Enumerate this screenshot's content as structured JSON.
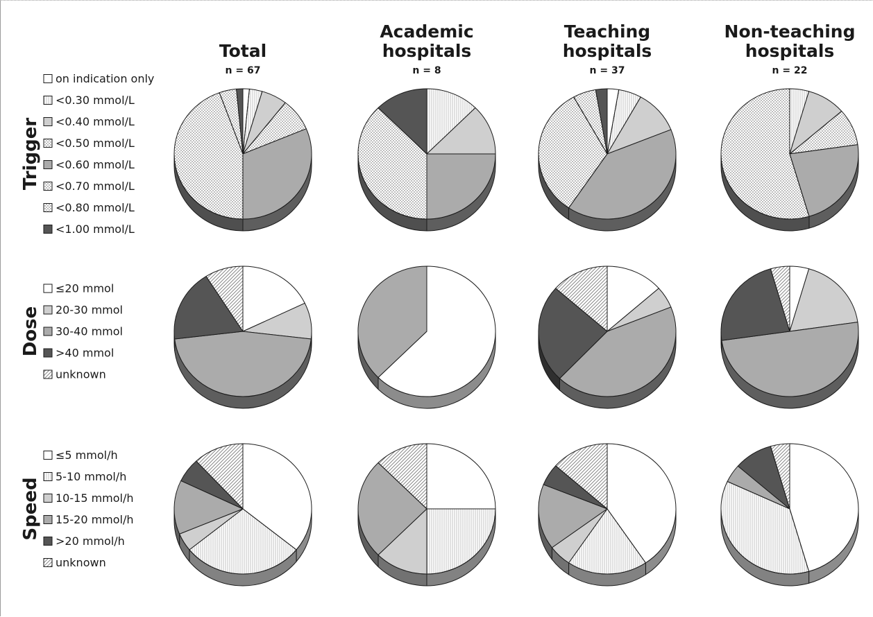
{
  "chart_data": {
    "type": "pie",
    "columns": [
      {
        "title": [
          "Total"
        ],
        "n_label": "n = 67"
      },
      {
        "title": [
          "Academic",
          "hospitals"
        ],
        "n_label": "n = 8"
      },
      {
        "title": [
          "Teaching",
          "hospitals"
        ],
        "n_label": "n = 37"
      },
      {
        "title": [
          "Non-teaching",
          "hospitals"
        ],
        "n_label": "n = 22"
      }
    ],
    "rows": [
      {
        "label": "Trigger",
        "categories": [
          {
            "label": "on indication only",
            "fill": "#ffffff",
            "pattern": "none"
          },
          {
            "label": "<0.30 mmol/L",
            "fill": "#ededed",
            "pattern": "vlines"
          },
          {
            "label": "<0.40 mmol/L",
            "fill": "#cfcfcf",
            "pattern": "none"
          },
          {
            "label": "<0.50 mmol/L",
            "fill": "#c4c4c4",
            "pattern": "dots"
          },
          {
            "label": "<0.60 mmol/L",
            "fill": "#ababab",
            "pattern": "none"
          },
          {
            "label": "<0.70 mmol/L",
            "fill": "#8f8f8f",
            "pattern": "dots"
          },
          {
            "label": "<0.80 mmol/L",
            "fill": "#4a4a4a",
            "pattern": "dots"
          },
          {
            "label": "<1.00 mmol/L",
            "fill": "#555555",
            "pattern": "none"
          }
        ],
        "values": [
          [
            1.5,
            3,
            6,
            8,
            31,
            44,
            4,
            1.5
          ],
          [
            0,
            12.5,
            12.5,
            0,
            25,
            37.5,
            0,
            12.5
          ],
          [
            2.7,
            5.4,
            10.8,
            0,
            40.5,
            32.4,
            5.4,
            2.7
          ],
          [
            0,
            4.5,
            9.1,
            9.1,
            22.7,
            54.5,
            0,
            0
          ]
        ]
      },
      {
        "label": "Dose",
        "categories": [
          {
            "label": "≤20 mmol",
            "fill": "#ffffff",
            "pattern": "none"
          },
          {
            "label": "20-30 mmol",
            "fill": "#cfcfcf",
            "pattern": "none"
          },
          {
            "label": "30-40 mmol",
            "fill": "#ababab",
            "pattern": "none"
          },
          {
            "label": ">40 mmol",
            "fill": "#555555",
            "pattern": "none"
          },
          {
            "label": "unknown",
            "fill": "#e9e9e9",
            "pattern": "diag"
          }
        ],
        "values": [
          [
            17.9,
            9,
            46.3,
            17.9,
            9
          ],
          [
            62.5,
            0,
            37.5,
            0,
            0
          ],
          [
            13.5,
            5.4,
            43.2,
            24.3,
            13.5
          ],
          [
            4.5,
            18.2,
            50,
            22.7,
            4.5
          ]
        ]
      },
      {
        "label": "Speed",
        "categories": [
          {
            "label": "≤5 mmol/h",
            "fill": "#ffffff",
            "pattern": "none"
          },
          {
            "label": "5-10 mmol/h",
            "fill": "#ededed",
            "pattern": "vlines"
          },
          {
            "label": "10-15 mmol/h",
            "fill": "#cfcfcf",
            "pattern": "none"
          },
          {
            "label": "15-20 mmol/h",
            "fill": "#ababab",
            "pattern": "none"
          },
          {
            "label": ">20 mmol/h",
            "fill": "#555555",
            "pattern": "none"
          },
          {
            "label": "unknown",
            "fill": "#e9e9e9",
            "pattern": "diag"
          }
        ],
        "values": [
          [
            35.8,
            28.4,
            4.5,
            13.4,
            6,
            11.9
          ],
          [
            25,
            25,
            12.5,
            25,
            0,
            12.5
          ],
          [
            40.5,
            18.9,
            5.4,
            16.2,
            5.4,
            13.5
          ],
          [
            45.5,
            36.4,
            0,
            4.5,
            9.1,
            4.5
          ]
        ]
      }
    ]
  }
}
